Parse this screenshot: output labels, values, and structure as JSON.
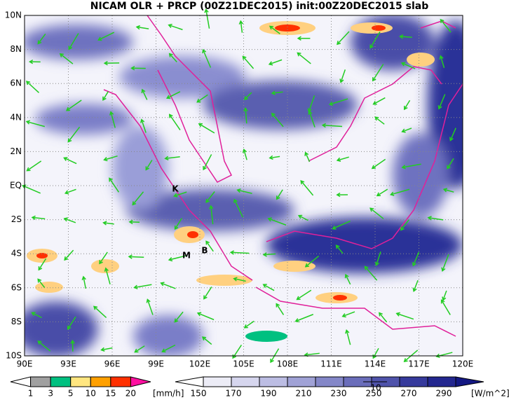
{
  "title": "NICAM OLR + PRCP (00Z21DEC2015) init:00Z20DEC2015 slab",
  "lat_labels": [
    "10N",
    "8N",
    "6N",
    "4N",
    "2N",
    "EQ",
    "2S",
    "4S",
    "6S",
    "8S",
    "10S"
  ],
  "lon_labels": [
    "90E",
    "93E",
    "96E",
    "99E",
    "102E",
    "105E",
    "108E",
    "111E",
    "114E",
    "117E",
    "120E"
  ],
  "place_labels": [
    "K",
    "M",
    "B"
  ],
  "vector_reference": "10",
  "precip_colorbar": {
    "labels": [
      "1",
      "3",
      "5",
      "10",
      "15",
      "20"
    ],
    "unit": "[mm/h]"
  },
  "olr_colorbar": {
    "labels": [
      "150",
      "170",
      "190",
      "210",
      "230",
      "250",
      "270",
      "290"
    ],
    "unit": "[W/m^2]"
  }
}
